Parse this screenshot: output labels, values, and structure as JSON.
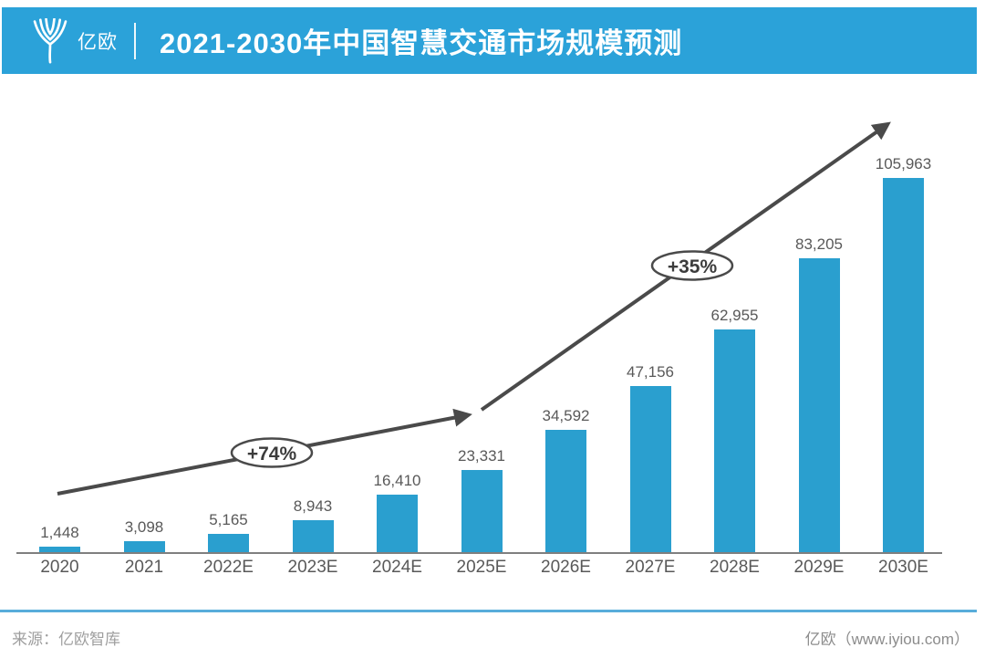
{
  "header": {
    "logo_text": "亿欧",
    "title": "2021-2030年中国智慧交通市场规模预测",
    "banner_color": "#2BA2D9"
  },
  "chart_data": {
    "type": "bar",
    "title": "2021-2030年中国智慧交通市场规模预测",
    "categories": [
      "2020",
      "2021",
      "2022E",
      "2023E",
      "2024E",
      "2025E",
      "2026E",
      "2027E",
      "2028E",
      "2029E",
      "2030E"
    ],
    "values": [
      1448,
      3098,
      5165,
      8943,
      16410,
      23331,
      34592,
      47156,
      62955,
      83205,
      105963
    ],
    "values_formatted": [
      "1,448",
      "3,098",
      "5,165",
      "8,943",
      "16,410",
      "23,331",
      "34,592",
      "47,156",
      "62,955",
      "83,205",
      "105,963"
    ],
    "bar_color": "#2A9FCF",
    "label_color": "#595959",
    "axis_color": "#7f7f7f",
    "arrow_color": "#4a4a4a",
    "ylim": [
      0,
      110000
    ],
    "grid": false,
    "legend": false,
    "annotations": [
      {
        "label": "+74%"
      },
      {
        "label": "+35%"
      }
    ]
  },
  "footer": {
    "source": "来源：亿欧智库",
    "brand": "亿欧（www.iyiou.com）",
    "line_color": "#58ADDA"
  }
}
